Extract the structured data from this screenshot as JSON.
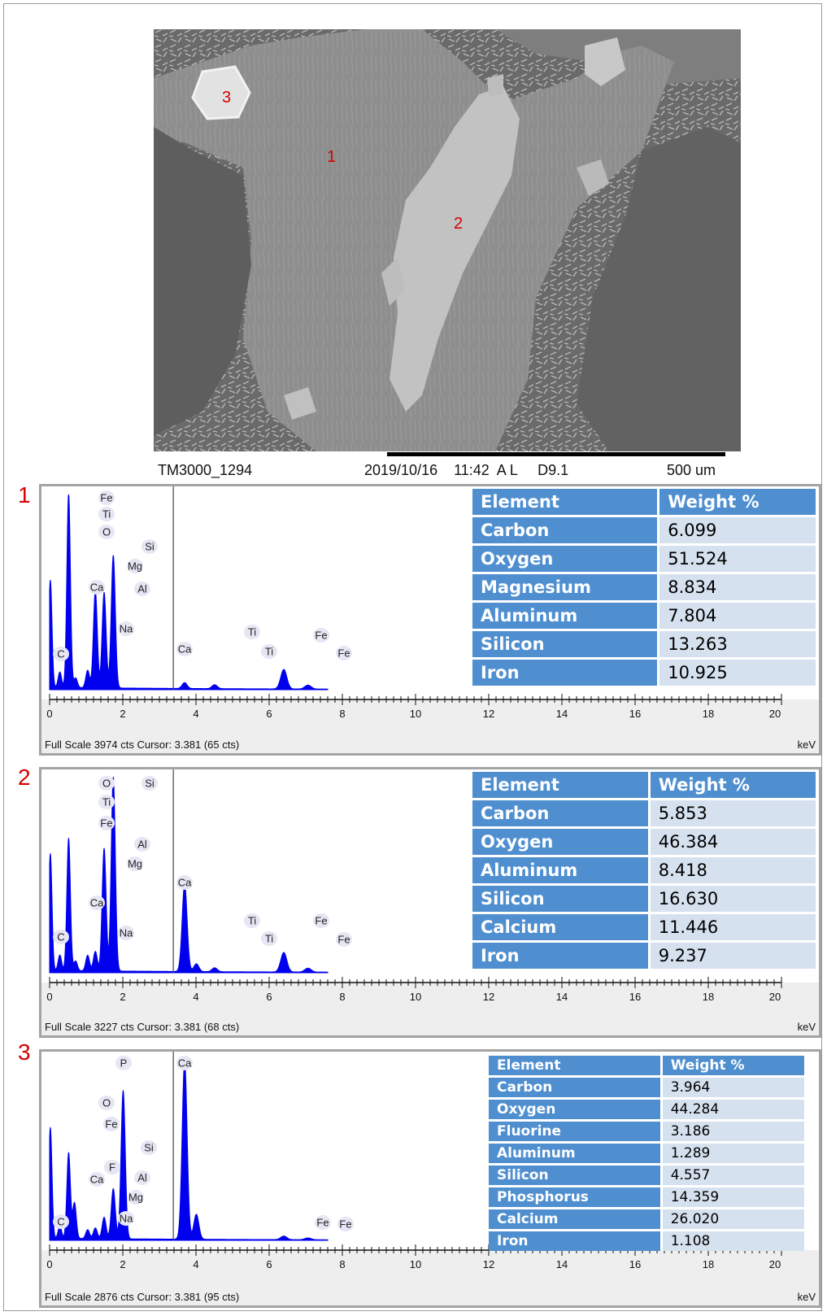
{
  "sem_image": {
    "caption_id": "TM3000_1294",
    "caption_datetime": "2019/10/16    11:42  A L     D9.1",
    "scale_label": "500 um",
    "point_labels": [
      "1",
      "2",
      "3"
    ]
  },
  "colors": {
    "spectrum": "#0000ee",
    "table_header": "#4f8fd0",
    "table_cell": "#d6e1ef",
    "marker": "#d60000"
  },
  "panels": [
    {
      "number": "1",
      "footer": "Full Scale 3974 cts Cursor: 3.381  (65 cts)",
      "axis_unit": "keV",
      "table": {
        "header": [
          "Element",
          "Weight %"
        ],
        "rows": [
          [
            "Carbon",
            "6.099"
          ],
          [
            "Oxygen",
            "51.524"
          ],
          [
            "Magnesium",
            "8.834"
          ],
          [
            "Aluminum",
            "7.804"
          ],
          [
            "Silicon",
            "13.263"
          ],
          [
            "Iron",
            "10.925"
          ]
        ]
      },
      "peak_labels": [
        "Fe",
        "Ti",
        "O",
        "Si",
        "Mg",
        "Ca",
        "Al",
        "Na",
        "C",
        "Ca",
        "Ti",
        "Ti",
        "Fe",
        "Fe"
      ]
    },
    {
      "number": "2",
      "footer": "Full Scale 3227 cts Cursor: 3.381  (68 cts)",
      "axis_unit": "keV",
      "table": {
        "header": [
          "Element",
          "Weight %"
        ],
        "rows": [
          [
            "Carbon",
            "5.853"
          ],
          [
            "Oxygen",
            "46.384"
          ],
          [
            "Aluminum",
            "8.418"
          ],
          [
            "Silicon",
            "16.630"
          ],
          [
            "Calcium",
            "11.446"
          ],
          [
            "Iron",
            "9.237"
          ]
        ]
      },
      "peak_labels": [
        "O",
        "Si",
        "Ti",
        "Fe",
        "Al",
        "Mg",
        "Ca",
        "Ca",
        "Na",
        "C",
        "Ti",
        "Ti",
        "Fe",
        "Fe"
      ]
    },
    {
      "number": "3",
      "footer": "Full Scale 2876 cts Cursor: 3.381  (95 cts)",
      "axis_unit": "keV",
      "table": {
        "header": [
          "Element",
          "Weight %"
        ],
        "rows": [
          [
            "Carbon",
            "3.964"
          ],
          [
            "Oxygen",
            "44.284"
          ],
          [
            "Fluorine",
            "3.186"
          ],
          [
            "Aluminum",
            "1.289"
          ],
          [
            "Silicon",
            "4.557"
          ],
          [
            "Phosphorus",
            "14.359"
          ],
          [
            "Calcium",
            "26.020"
          ],
          [
            "Iron",
            "1.108"
          ]
        ]
      },
      "peak_labels": [
        "P",
        "Ca",
        "O",
        "Fe",
        "Si",
        "F",
        "Ca",
        "Al",
        "Mg",
        "Na",
        "C",
        "Fe",
        "Fe"
      ]
    }
  ],
  "chart_data": [
    {
      "type": "line",
      "xlabel": "keV",
      "xlim": [
        0,
        20
      ],
      "x_ticks": [
        "0",
        "2",
        "4",
        "6",
        "8",
        "10",
        "12",
        "14",
        "16",
        "18",
        "20"
      ],
      "cursor_kev": 3.381,
      "peaks": [
        {
          "x": 0.02,
          "y": 0.55
        },
        {
          "x": 0.28,
          "y": 0.08
        },
        {
          "x": 0.52,
          "y": 1.0
        },
        {
          "x": 0.71,
          "y": 0.05
        },
        {
          "x": 1.04,
          "y": 0.09
        },
        {
          "x": 1.25,
          "y": 0.5
        },
        {
          "x": 1.49,
          "y": 0.49
        },
        {
          "x": 1.74,
          "y": 0.68
        },
        {
          "x": 3.69,
          "y": 0.03
        },
        {
          "x": 4.51,
          "y": 0.02
        },
        {
          "x": 6.4,
          "y": 0.1
        },
        {
          "x": 7.06,
          "y": 0.02
        }
      ]
    },
    {
      "type": "line",
      "xlabel": "keV",
      "xlim": [
        0,
        20
      ],
      "x_ticks": [
        "0",
        "2",
        "4",
        "6",
        "8",
        "10",
        "12",
        "14",
        "16",
        "18",
        "20"
      ],
      "cursor_kev": 3.381,
      "peaks": [
        {
          "x": 0.02,
          "y": 0.6
        },
        {
          "x": 0.28,
          "y": 0.08
        },
        {
          "x": 0.52,
          "y": 0.68
        },
        {
          "x": 0.71,
          "y": 0.05
        },
        {
          "x": 1.04,
          "y": 0.08
        },
        {
          "x": 1.25,
          "y": 0.1
        },
        {
          "x": 1.49,
          "y": 0.63
        },
        {
          "x": 1.74,
          "y": 1.0
        },
        {
          "x": 3.69,
          "y": 0.45
        },
        {
          "x": 4.01,
          "y": 0.04
        },
        {
          "x": 4.51,
          "y": 0.02
        },
        {
          "x": 6.4,
          "y": 0.1
        },
        {
          "x": 7.06,
          "y": 0.02
        }
      ]
    },
    {
      "type": "line",
      "xlabel": "keV",
      "xlim": [
        0,
        20
      ],
      "x_ticks": [
        "0",
        "2",
        "4",
        "6",
        "8",
        "10",
        "12",
        "14",
        "16",
        "18",
        "20"
      ],
      "cursor_kev": 3.381,
      "peaks": [
        {
          "x": 0.02,
          "y": 0.62
        },
        {
          "x": 0.28,
          "y": 0.07
        },
        {
          "x": 0.52,
          "y": 0.48
        },
        {
          "x": 0.68,
          "y": 0.2
        },
        {
          "x": 1.04,
          "y": 0.05
        },
        {
          "x": 1.25,
          "y": 0.06
        },
        {
          "x": 1.49,
          "y": 0.12
        },
        {
          "x": 1.74,
          "y": 0.28
        },
        {
          "x": 2.01,
          "y": 0.83
        },
        {
          "x": 3.69,
          "y": 1.0
        },
        {
          "x": 4.01,
          "y": 0.14
        },
        {
          "x": 6.4,
          "y": 0.02
        },
        {
          "x": 7.06,
          "y": 0.01
        }
      ]
    }
  ]
}
